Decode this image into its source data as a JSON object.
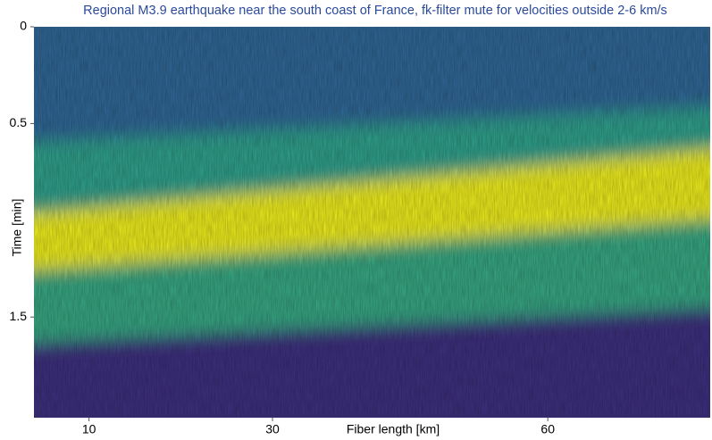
{
  "chart_data": {
    "type": "heatmap",
    "title": "Regional M3.9 earthquake near the south coast of France, fk-filter mute for velocities outside 2-6 km/s",
    "x_label": "Fiber length [km]",
    "y_label": "Time [min]",
    "xlim": [
      4,
      77.7
    ],
    "ylim": [
      0,
      2.02
    ],
    "xticks": [
      10,
      30,
      60
    ],
    "yticks": [
      0,
      0.5,
      1.5
    ],
    "fronts": {
      "x": [
        4,
        77.7
      ],
      "series": [
        {
          "color": "#2d6390",
          "values": [
            0.6,
            0.41
          ]
        },
        {
          "color": "#2f9a86",
          "values": [
            0.97,
            0.62
          ]
        },
        {
          "color": "#e4e31c",
          "values": [
            1.27,
            0.99
          ]
        },
        {
          "color": "#34a07d",
          "values": [
            1.64,
            1.45
          ]
        }
      ],
      "floor_color": "#3b2d79"
    }
  }
}
